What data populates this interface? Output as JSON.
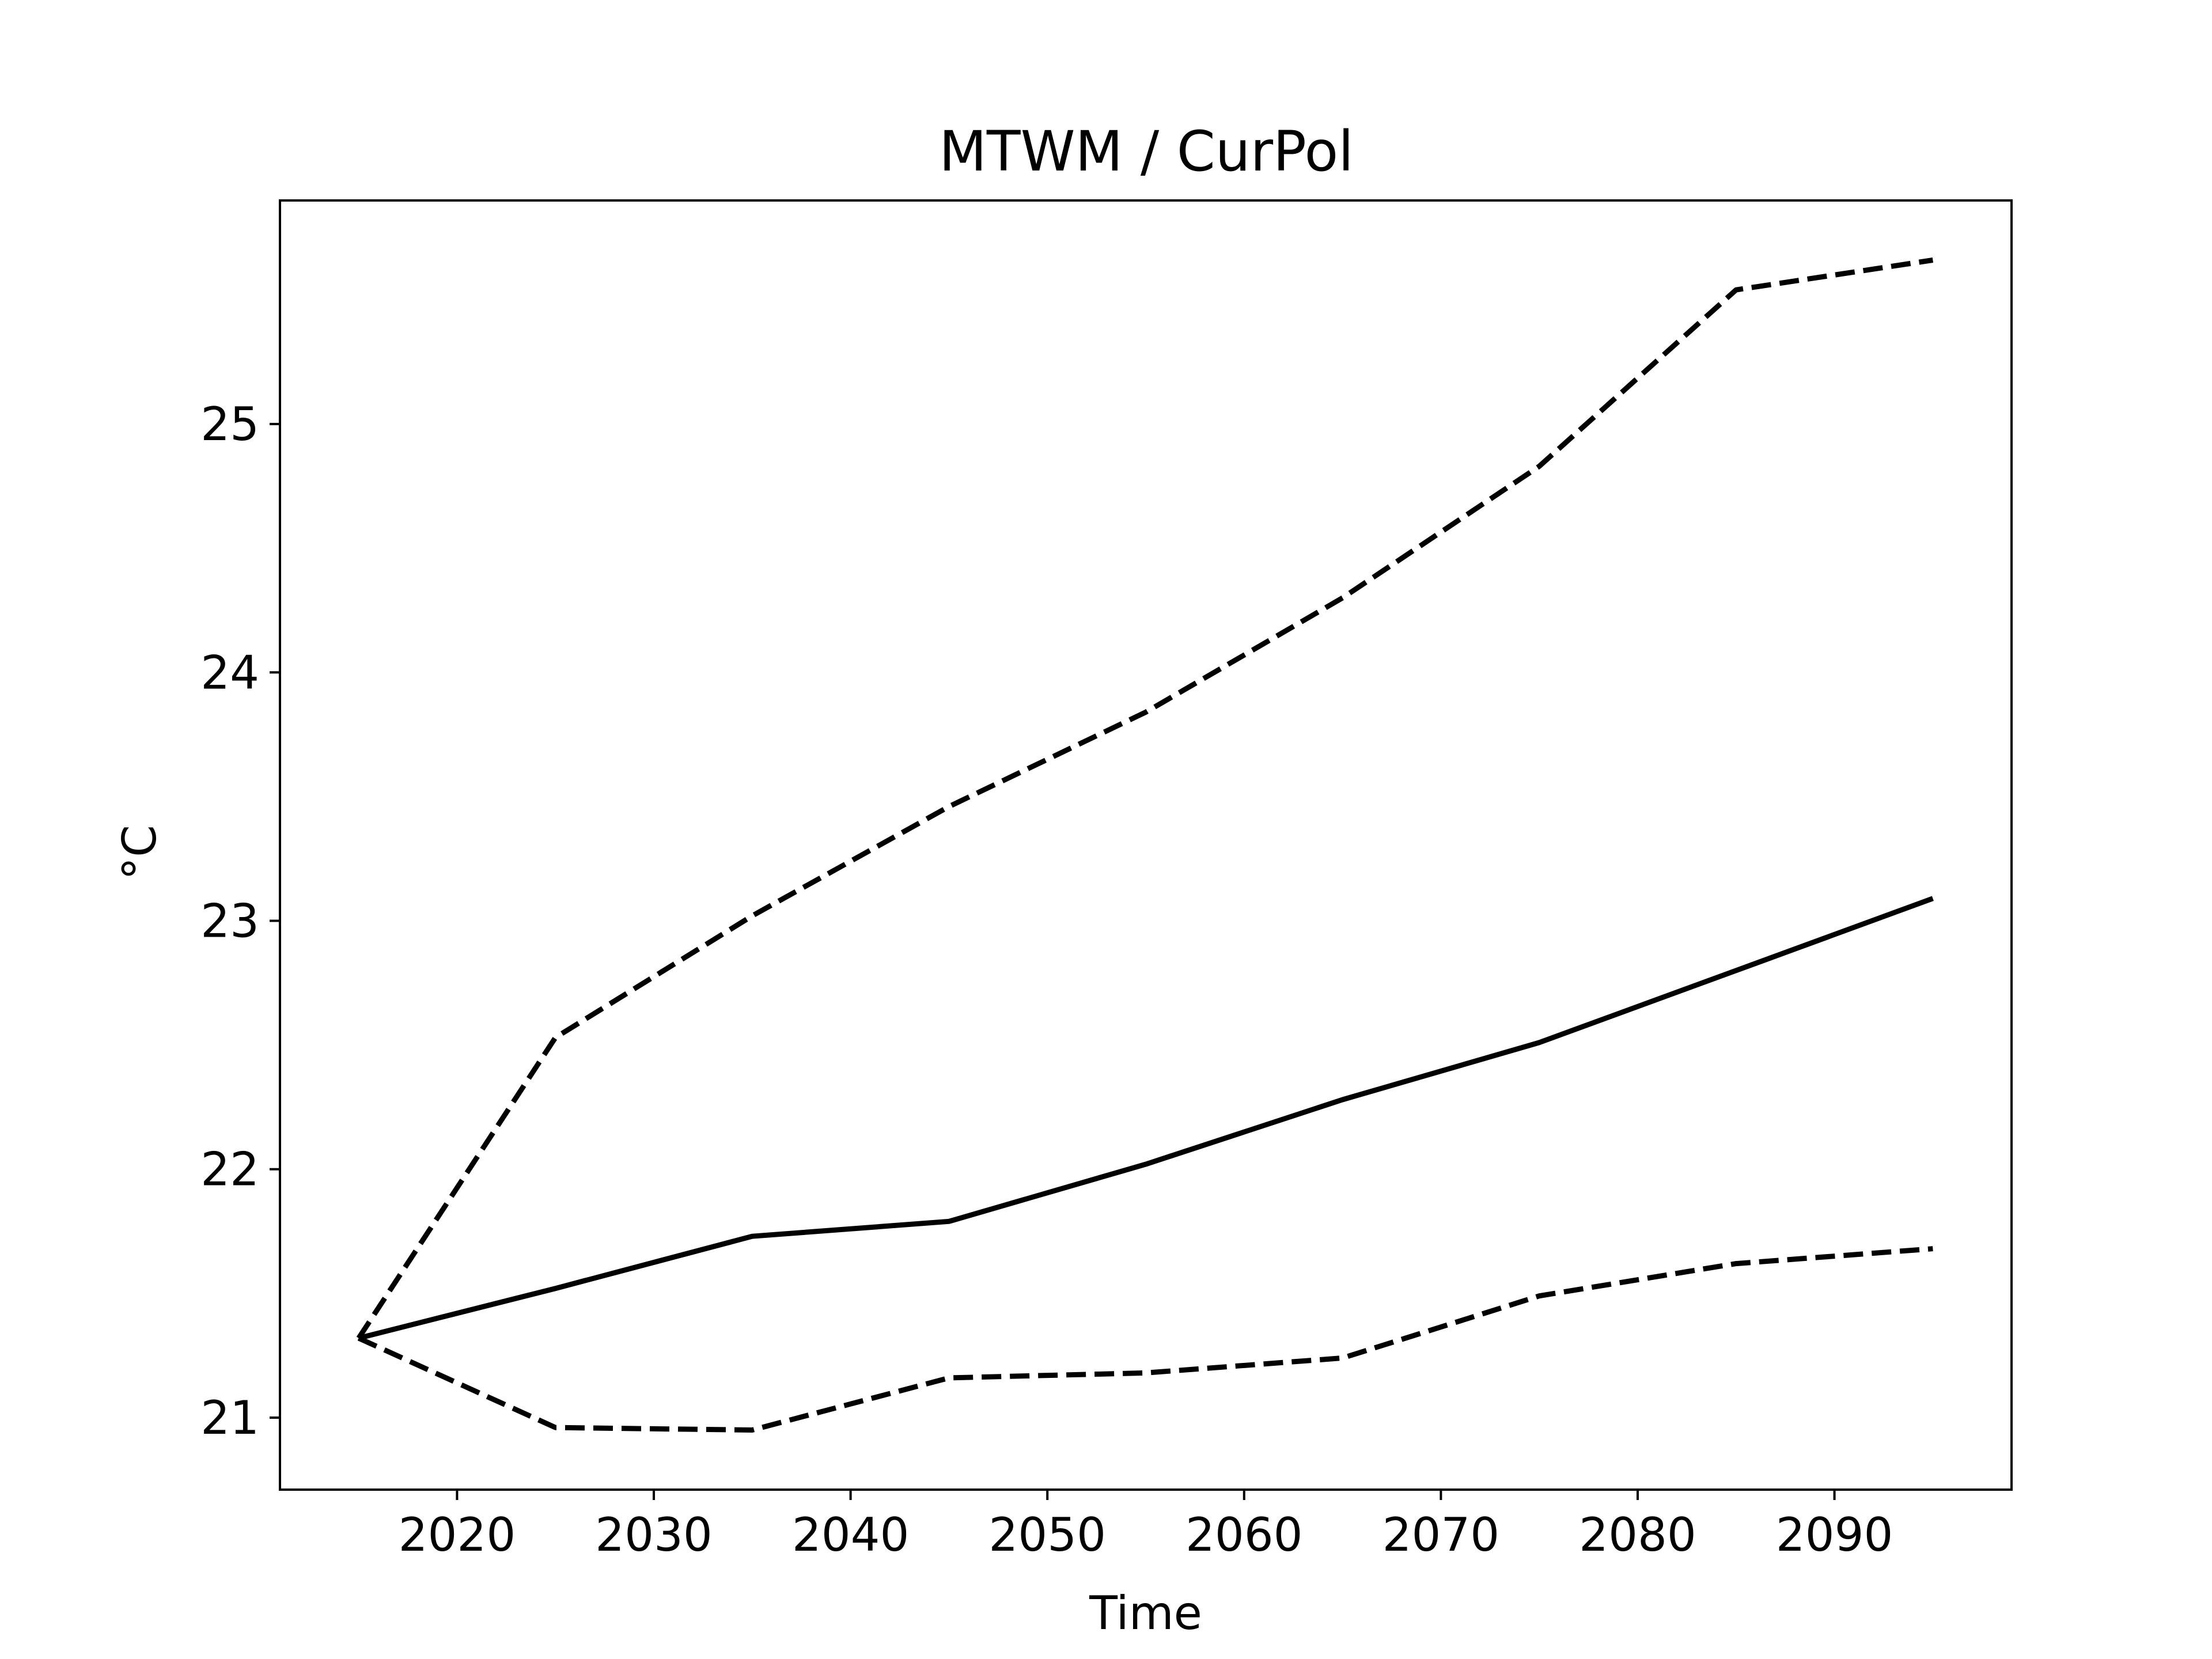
{
  "chart_data": {
    "type": "line",
    "title": "MTWM / CurPol",
    "xlabel": "Time",
    "ylabel": "°C",
    "xlim": [
      2011,
      2099
    ],
    "ylim": [
      20.71,
      25.9
    ],
    "xticks": [
      2020,
      2030,
      2040,
      2050,
      2060,
      2070,
      2080,
      2090
    ],
    "yticks": [
      21,
      22,
      23,
      24,
      25
    ],
    "grid": false,
    "legend": "none",
    "x": [
      2015,
      2025,
      2035,
      2045,
      2055,
      2065,
      2075,
      2085,
      2095
    ],
    "series": [
      {
        "style": "solid",
        "color": "#000000",
        "values": [
          21.32,
          21.52,
          21.73,
          21.79,
          22.02,
          22.28,
          22.51,
          22.8,
          23.09
        ]
      },
      {
        "style": "dashed",
        "color": "#000000",
        "values": [
          21.32,
          22.53,
          23.02,
          23.46,
          23.84,
          24.3,
          24.83,
          25.54,
          25.66
        ]
      },
      {
        "style": "dashed",
        "color": "#000000",
        "values": [
          21.32,
          20.96,
          20.95,
          21.16,
          21.18,
          21.24,
          21.49,
          21.62,
          21.68
        ]
      }
    ]
  }
}
